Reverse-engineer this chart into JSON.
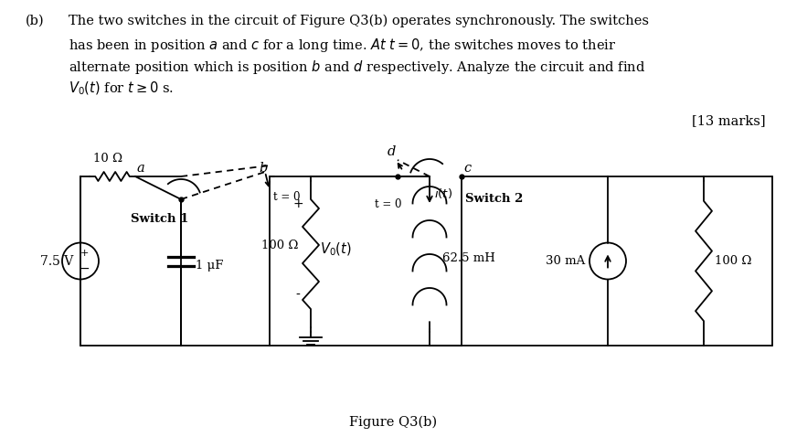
{
  "bg_color": "#ffffff",
  "text_color": "#000000",
  "title_b": "(b)",
  "line1": "The two switches in the circuit of Figure Q3(b) operates synchronously. The switches",
  "line2": "has been in position $a$ and $c$ for a long time. $At$ $t = 0$, the switches moves to their",
  "line3": "alternate position which is position $b$ and $d$ respectively. Analyze the circuit and find",
  "line4": "$V_0(t)$ for $t \\geq 0$ s.",
  "marks": "[13 marks]",
  "fig_caption": "Figure Q3(b)",
  "voltage_source_label": "7.5 V",
  "r1_label": "10 Ω",
  "r2_label": "100 Ω",
  "r3_label": "100 Ω",
  "cap_label": "1 μF",
  "ind_label": "62.5 mH",
  "cs_label": "30 mA",
  "sw1_label": "Switch 1",
  "sw2_label": "Switch 2",
  "node_a": "a",
  "node_b": "b",
  "node_c": "c",
  "node_d": "d",
  "t0_1": "t = 0",
  "t0_2": "t = 0",
  "vo_label": "$V_0(t)$",
  "it_label": "$i(t)$",
  "plus": "+",
  "minus": "-"
}
